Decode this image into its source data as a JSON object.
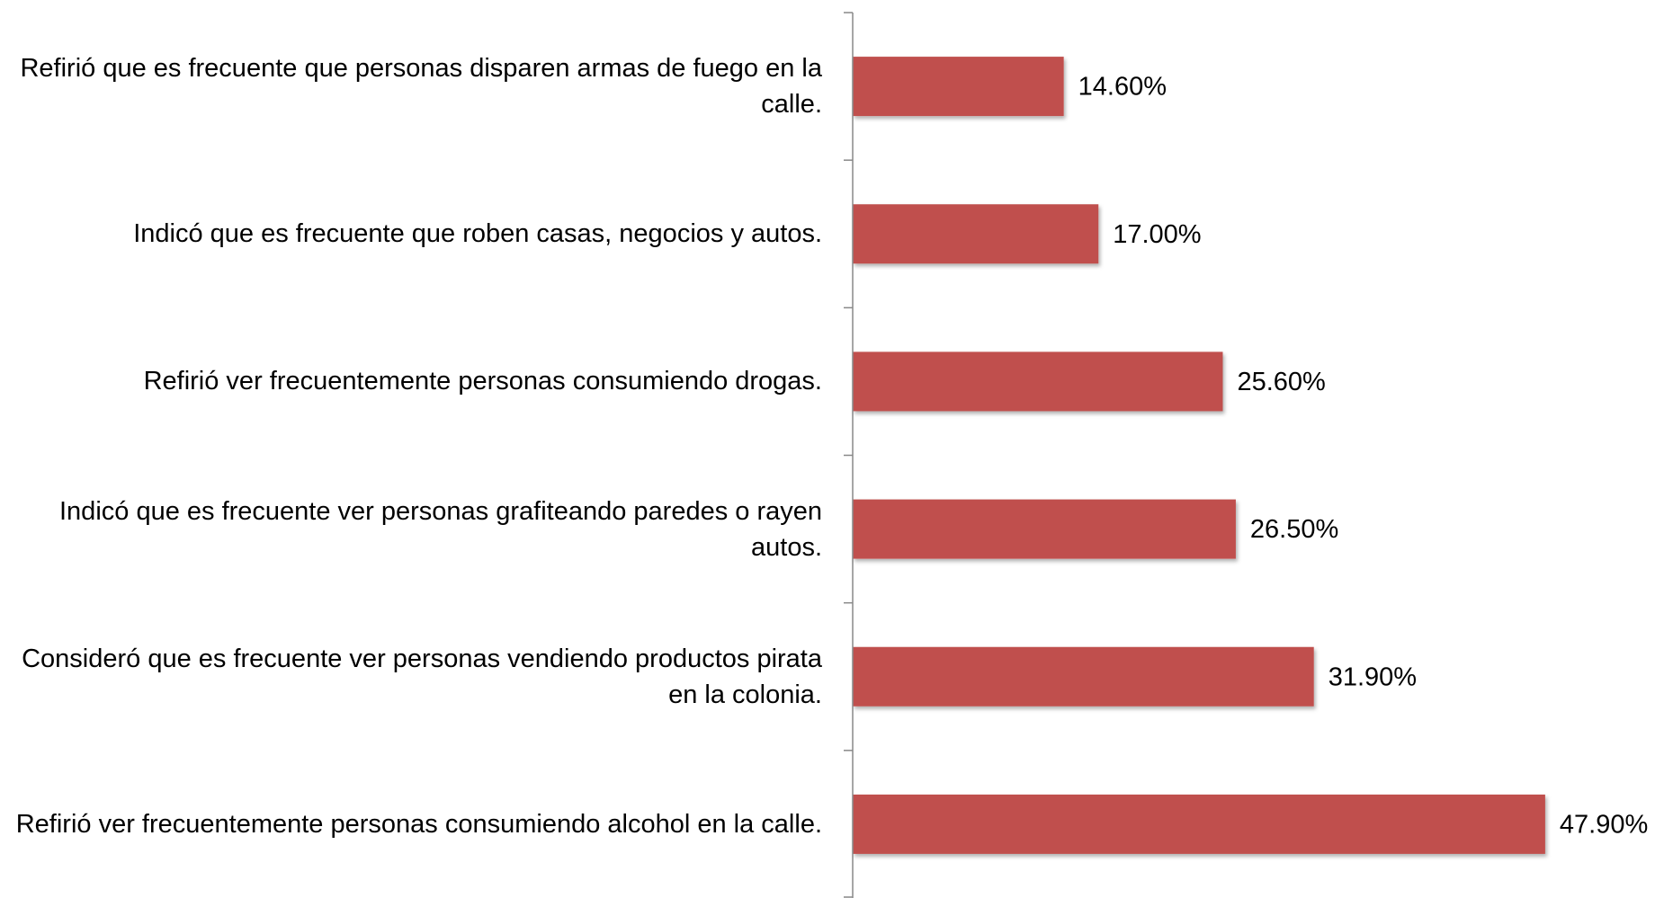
{
  "chart_data": {
    "type": "bar",
    "orientation": "horizontal",
    "categories": [
      "Refirió que es frecuente que personas disparen armas de fuego en la calle.",
      "Indicó que es frecuente que roben casas, negocios y autos.",
      "Refirió ver frecuentemente personas consumiendo drogas.",
      "Indicó que es frecuente ver personas grafiteando paredes o rayen autos.",
      "Consideró que es frecuente ver personas vendiendo productos pirata en la colonia.",
      "Refirió ver frecuentemente personas consumiendo alcohol en la calle."
    ],
    "values": [
      14.6,
      17.0,
      25.6,
      26.5,
      31.9,
      47.9
    ],
    "value_labels": [
      "14.60%",
      "17.00%",
      "25.60%",
      "26.50%",
      "31.90%",
      "47.90%"
    ],
    "color": "#c0504d",
    "xlim": [
      0,
      55
    ]
  }
}
